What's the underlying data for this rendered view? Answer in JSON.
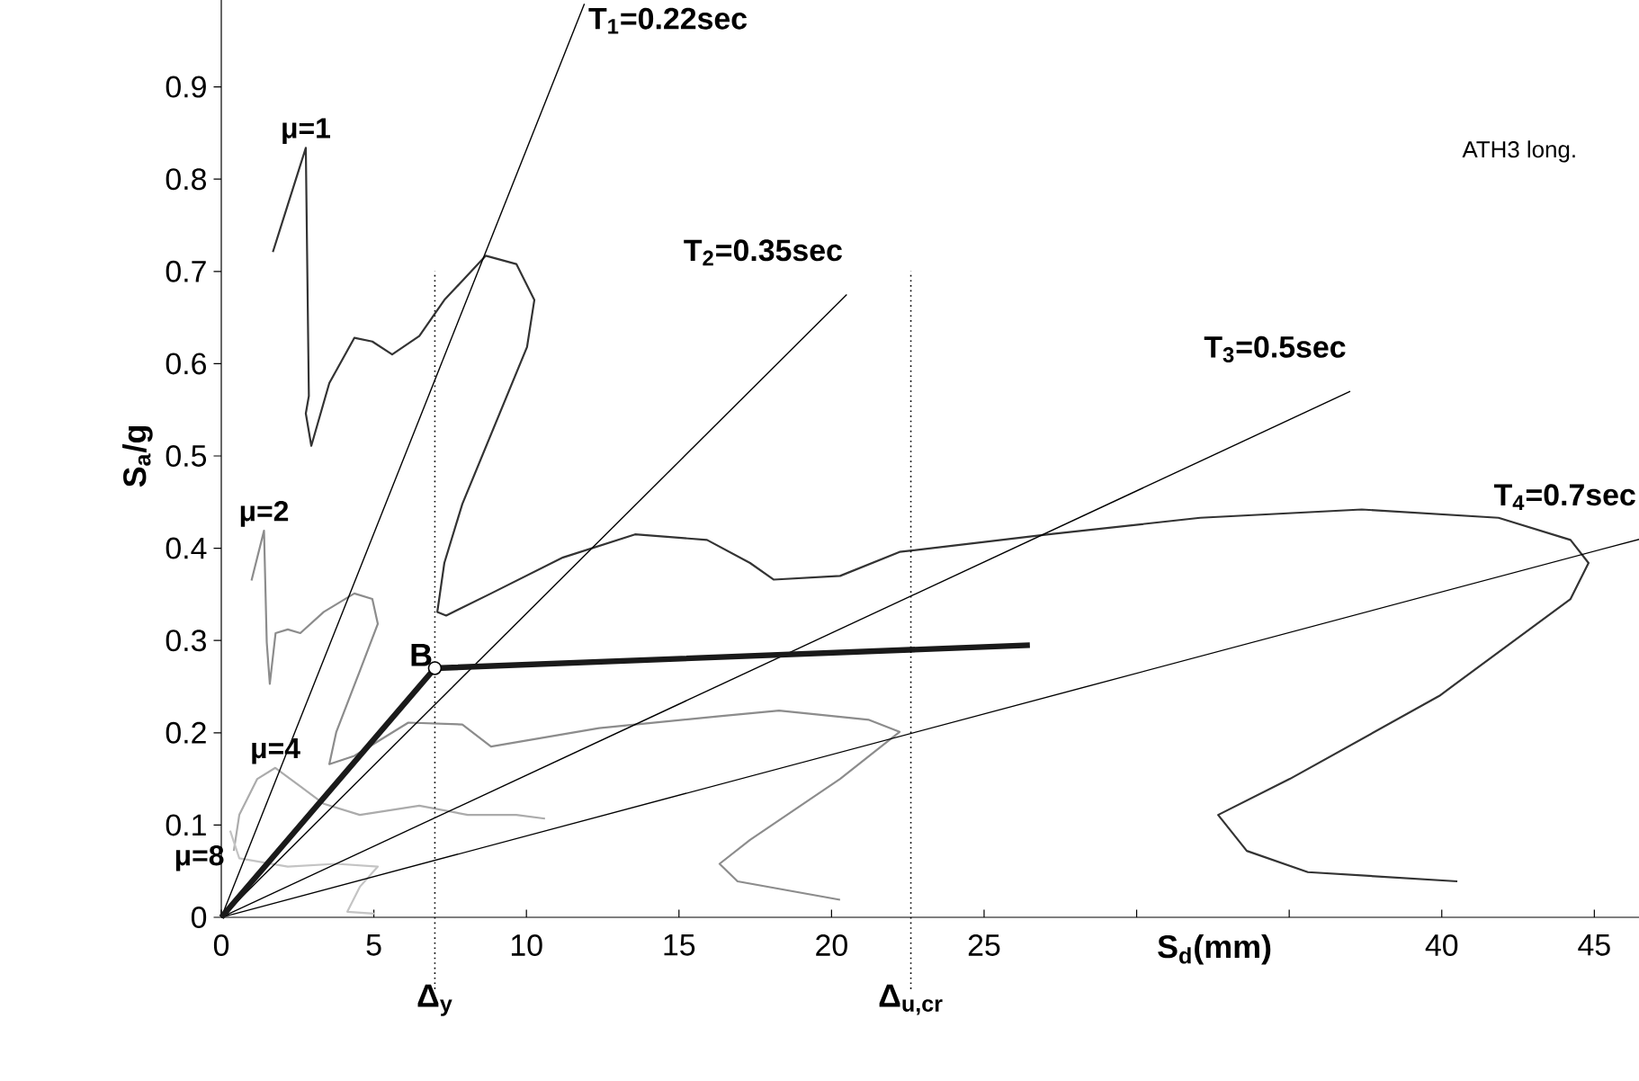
{
  "chart_data": {
    "type": "line",
    "xlabel": "S$_{d}$(mm)",
    "ylabel": "S$_{a}$/g",
    "xlim": [
      0,
      46.5
    ],
    "ylim": [
      0,
      1.0
    ],
    "xticks": [
      0,
      5,
      10,
      15,
      20,
      25,
      {
        "value": 30,
        "label": null
      },
      {
        "value": 35,
        "label": null
      },
      40,
      45
    ],
    "yticks": [
      0,
      0.1,
      0.2,
      0.3,
      0.4,
      0.5,
      0.6,
      0.7,
      0.8,
      0.9
    ],
    "grid": false,
    "legend": false,
    "marker": "none",
    "line_style": "solid",
    "series": [
      {
        "name": "μ=1",
        "color": "#333333",
        "x": [
          1.69,
          2.77,
          2.87,
          2.77,
          2.95,
          3.54,
          4.36,
          4.95,
          5.6,
          6.49,
          7.31,
          8.67,
          9.67,
          10.26,
          10.02,
          7.9,
          7.31,
          7.08,
          7.37,
          8.84,
          11.2,
          13.56,
          15.92,
          17.33,
          18.1,
          20.28,
          22.23,
          27.12,
          32.08,
          37.38,
          41.86,
          44.22,
          44.81,
          44.22,
          39.92,
          35.02,
          32.67,
          33.61,
          35.61,
          40.51
        ],
        "values": [
          0.721,
          0.834,
          0.565,
          0.546,
          0.511,
          0.579,
          0.628,
          0.624,
          0.61,
          0.63,
          0.669,
          0.717,
          0.708,
          0.669,
          0.618,
          0.448,
          0.384,
          0.331,
          0.327,
          0.351,
          0.39,
          0.415,
          0.409,
          0.384,
          0.366,
          0.37,
          0.396,
          0.415,
          0.433,
          0.442,
          0.433,
          0.409,
          0.384,
          0.345,
          0.24,
          0.15,
          0.111,
          0.072,
          0.049,
          0.039
        ]
      },
      {
        "name": "μ=2",
        "color": "#8c8c8c",
        "x": [
          0.99,
          1.4,
          1.49,
          1.59,
          1.78,
          2.18,
          2.59,
          3.36,
          4.36,
          4.95,
          5.13,
          4.54,
          3.77,
          3.54,
          4.36,
          6.13,
          7.9,
          8.84,
          12.38,
          16.33,
          18.28,
          21.23,
          22.23,
          20.28,
          17.33,
          16.33,
          16.92,
          20.28
        ],
        "values": [
          0.365,
          0.419,
          0.298,
          0.253,
          0.308,
          0.312,
          0.308,
          0.331,
          0.351,
          0.345,
          0.318,
          0.267,
          0.201,
          0.166,
          0.175,
          0.211,
          0.209,
          0.185,
          0.205,
          0.218,
          0.224,
          0.214,
          0.201,
          0.15,
          0.084,
          0.058,
          0.039,
          0.019
        ]
      },
      {
        "name": "μ=4",
        "color": "#ababab",
        "x": [
          0.41,
          0.59,
          1.18,
          1.77,
          2.59,
          3.36,
          4.54,
          6.49,
          8.08,
          9.67,
          10.61
        ],
        "values": [
          0.072,
          0.111,
          0.15,
          0.162,
          0.142,
          0.123,
          0.111,
          0.121,
          0.111,
          0.111,
          0.107
        ]
      },
      {
        "name": "μ=8",
        "color": "#c4c4c4",
        "x": [
          0.29,
          0.59,
          2.18,
          3.77,
          5.13,
          4.54,
          4.13,
          5.01
        ],
        "values": [
          0.094,
          0.064,
          0.055,
          0.058,
          0.055,
          0.033,
          0.006,
          0.004
        ]
      },
      {
        "name": "T$_{1}$=0.22sec",
        "color": "#000000",
        "x": [
          0,
          11.9
        ],
        "values": [
          0,
          0.99
        ]
      },
      {
        "name": "T$_{2}$=0.35sec",
        "color": "#000000",
        "x": [
          0,
          20.5
        ],
        "values": [
          0,
          0.675
        ]
      },
      {
        "name": "T$_{3}$=0.5sec",
        "color": "#000000",
        "x": [
          0,
          37.0
        ],
        "values": [
          0,
          0.57
        ]
      },
      {
        "name": "T$_{4}$=0.7sec",
        "color": "#000000",
        "x": [
          0,
          46.5
        ],
        "values": [
          0,
          0.41
        ]
      },
      {
        "color": "#1a1a1a",
        "x": [
          0,
          7.0,
          26.5
        ],
        "values": [
          0,
          0.27,
          0.295
        ]
      }
    ],
    "ref_lines": [
      {
        "axis": "x",
        "value": 7.0,
        "label": "Δ$_{y}$",
        "line_style": "dotted"
      },
      {
        "axis": "x",
        "value": 22.6,
        "label": "Δ$_{u,cr}$",
        "line_style": "dotted"
      }
    ],
    "annotations": [
      {
        "text": "B",
        "x": 7.0,
        "y": 0.27
      },
      "ATH3 long."
    ]
  }
}
